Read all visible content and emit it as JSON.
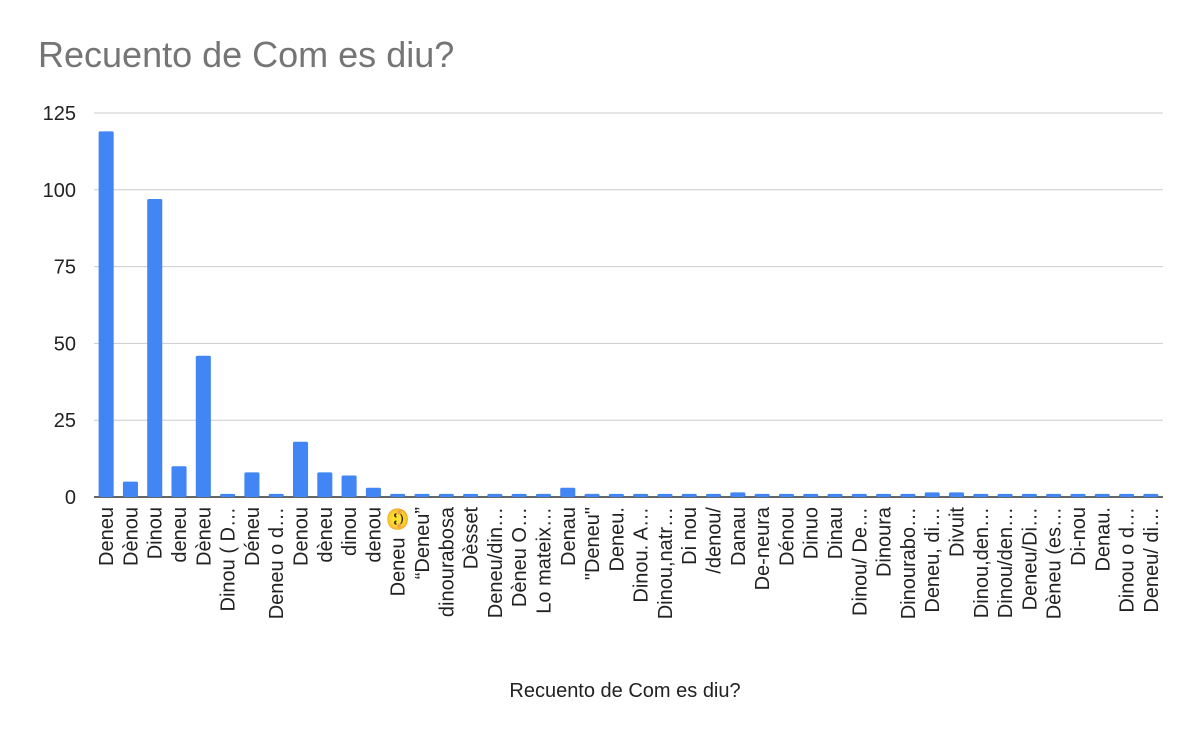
{
  "chart_data": {
    "type": "bar",
    "title": "Recuento de Com es diu?",
    "xlabel": "Recuento de Com es diu?",
    "ylabel": "",
    "ylim": [
      0,
      125
    ],
    "yticks": [
      0,
      25,
      50,
      75,
      100,
      125
    ],
    "grid": true,
    "legend": "none",
    "bar_color": "#4285f4",
    "categories": [
      "Deneu",
      "Dènou",
      "Dinou",
      "deneu",
      "Dèneu",
      "Dinou ( D…",
      "Déneu",
      "Deneu o d…",
      "Denou",
      "dèneu",
      "dinou",
      "denou",
      "Deneu 😊",
      "“Deneu”",
      "dinourabosa",
      "Dèsset",
      "Deneu/din…",
      "Dèneu O…",
      "Lo mateix…",
      "Denau",
      "\"Deneu\"",
      "Deneu.",
      "Dinou. A…",
      "Dinou,natr…",
      "Di nou",
      "/denou/",
      "Danau",
      "De-neura",
      "Dénou",
      "Dinuo",
      "Dinau",
      "Dinou/ De…",
      "Dinoura",
      "Dinourabo…",
      "Deneu, di…",
      "Divuit",
      "Dinou,den…",
      "Dinou/den…",
      "Deneu/Di…",
      "Dèneu (es…",
      "Di-nou",
      "Denau.",
      "Dinou o d…",
      "Deneu/ di…"
    ],
    "values": [
      119,
      5,
      97,
      10,
      46,
      1,
      8,
      1,
      18,
      8,
      7,
      3,
      1,
      1,
      1,
      1,
      1,
      1,
      1,
      3,
      1,
      1,
      1,
      1,
      1,
      1,
      1.5,
      1,
      1,
      1,
      1,
      1,
      1,
      1,
      1.5,
      1.5,
      1,
      1,
      1,
      1,
      1,
      1,
      1,
      1
    ]
  }
}
